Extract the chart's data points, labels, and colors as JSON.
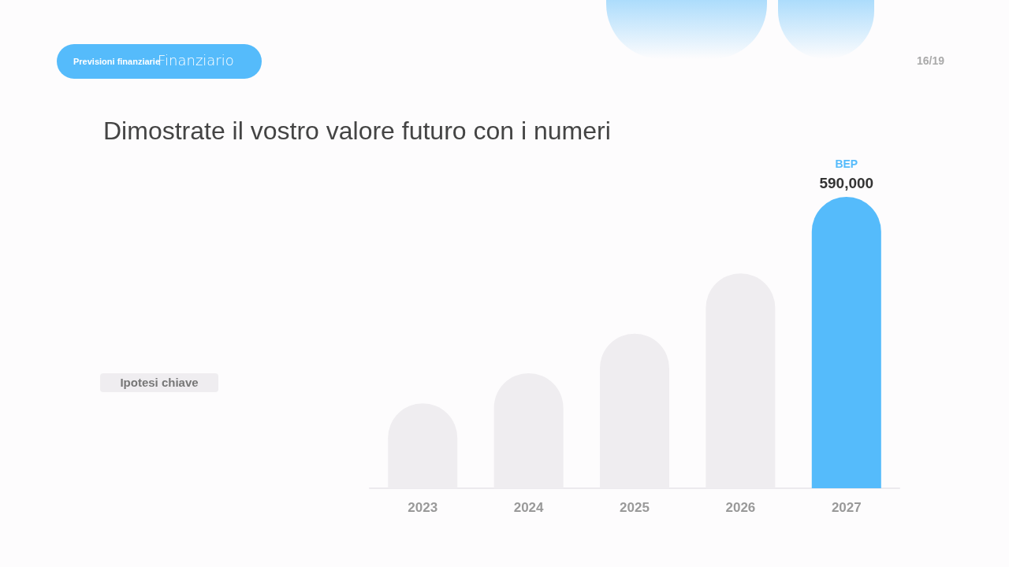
{
  "chart_data": {
    "type": "bar",
    "title": "Dimostrate il vostro valore futuro con i numeri",
    "tick_labels": "x",
    "categories": [
      "2023",
      "2024",
      "2025",
      "2026",
      "2027"
    ],
    "values": [
      172000,
      233000,
      313000,
      435000,
      590000
    ],
    "colors": [
      "#efedf0",
      "#efedf0",
      "#efedf0",
      "#efedf0",
      "#55bbfb"
    ],
    "value_labels": [
      null,
      null,
      null,
      null,
      "590,000"
    ],
    "annotations": [
      "Previsioni finanziarie",
      "Finanziario",
      "16/19",
      "Ipotesi chiave",
      "BEP"
    ]
  }
}
